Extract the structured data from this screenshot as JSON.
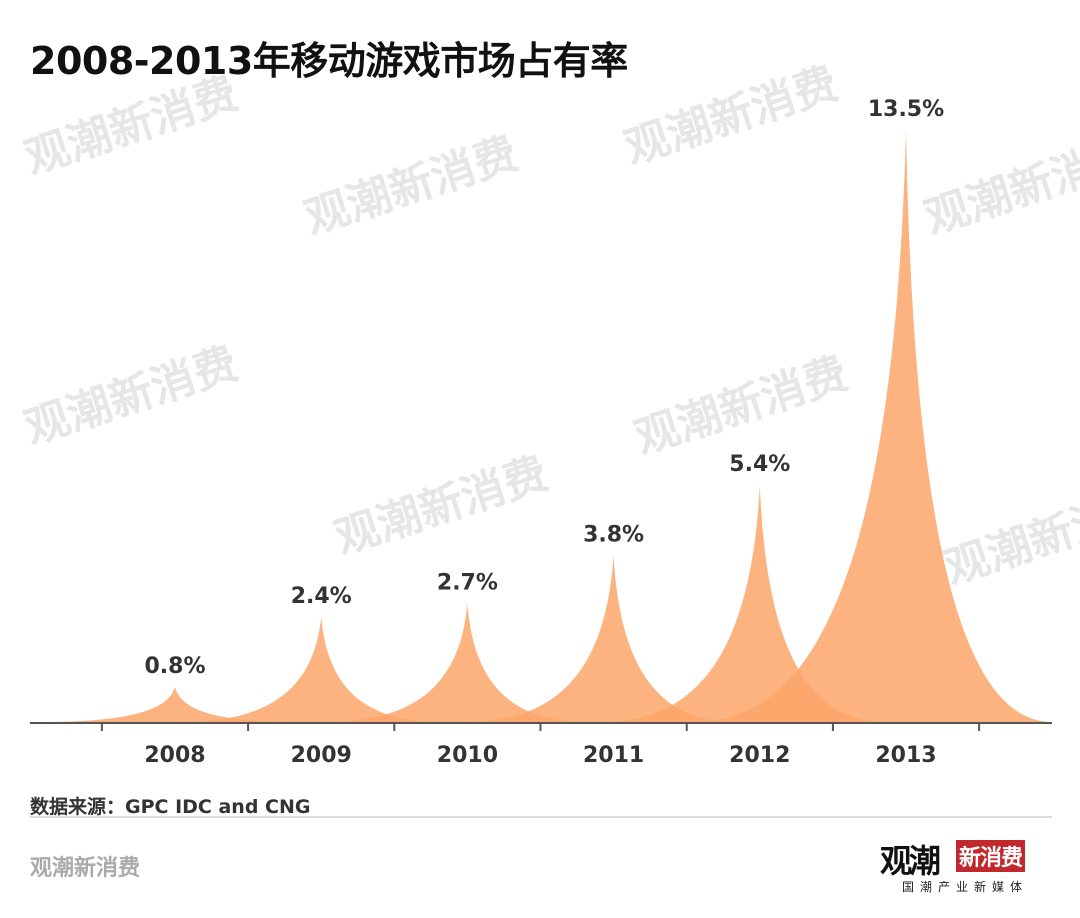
{
  "title": "2008-2013年移动游戏市场占有率",
  "source": "数据来源：GPC IDC and CNG",
  "footer_brand": "观潮新消费",
  "logo": {
    "main": "观潮",
    "badge": "新消费",
    "tagline": "国潮产业新媒体"
  },
  "watermark": "观潮新消费",
  "colors": {
    "fill": "#FBA66A",
    "axis": "#555555",
    "text": "#333333"
  },
  "chart_data": {
    "type": "area",
    "title": "2008-2013年移动游戏市场占有率",
    "categories": [
      "2008",
      "2009",
      "2010",
      "2011",
      "2012",
      "2013"
    ],
    "values": [
      0.8,
      2.4,
      2.7,
      3.8,
      5.4,
      13.5
    ],
    "data_labels": [
      "0.8%",
      "2.4%",
      "2.7%",
      "3.8%",
      "5.4%",
      "13.5%"
    ],
    "unit": "%",
    "ylim": [
      0,
      13.5
    ],
    "grid": false,
    "legend": "none"
  }
}
